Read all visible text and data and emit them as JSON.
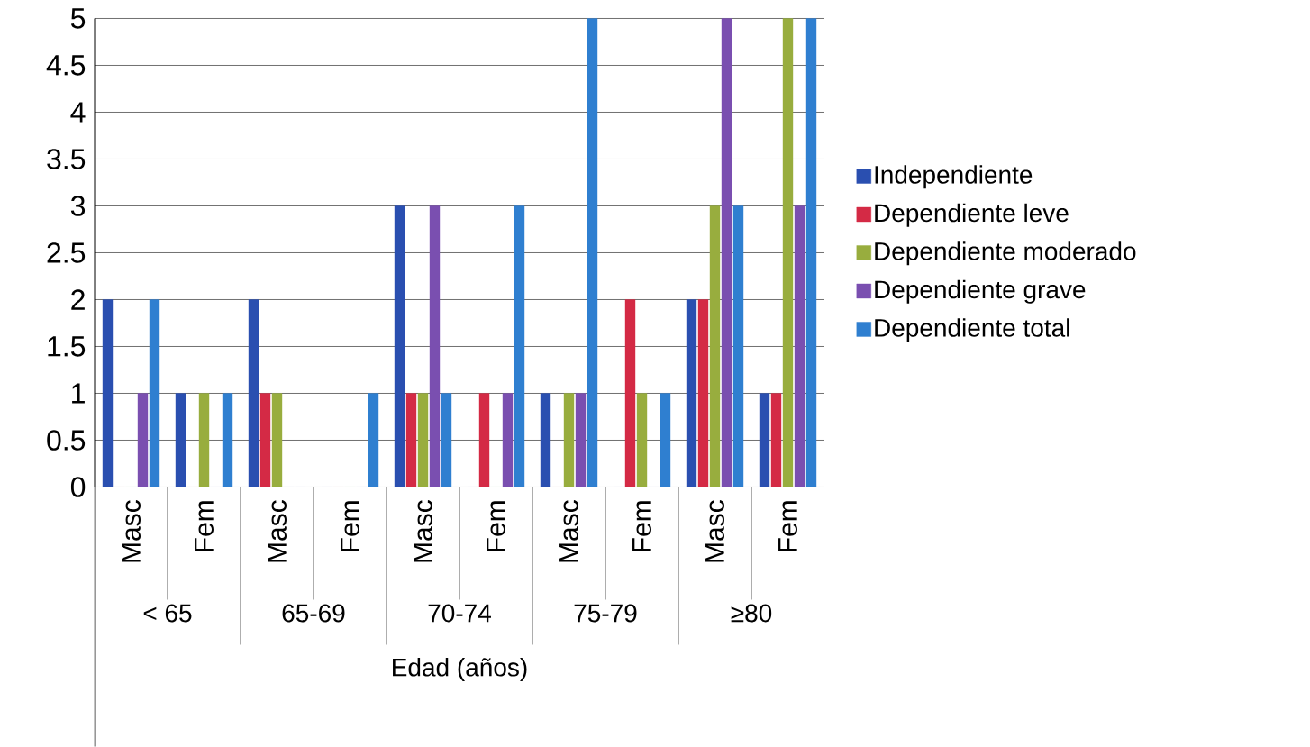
{
  "chart_data": {
    "type": "bar",
    "xlabel": "Edad (años)",
    "categories": [
      "Masc",
      "Fem",
      "Masc",
      "Fem",
      "Masc",
      "Fem",
      "Masc",
      "Fem",
      "Masc",
      "Fem"
    ],
    "annotations": [
      "< 65",
      "65-69",
      "70-74",
      "75-79",
      "≥80"
    ],
    "series": [
      {
        "name": "Independiente",
        "color": "#2a4fb0",
        "values": [
          2,
          1,
          2,
          0,
          3,
          0,
          1,
          0,
          2,
          1
        ]
      },
      {
        "name": "Dependiente leve",
        "color": "#d42a45",
        "values": [
          0,
          0,
          1,
          0,
          1,
          1,
          0,
          2,
          2,
          1
        ]
      },
      {
        "name": "Dependiente moderado",
        "color": "#98ad3e",
        "values": [
          0,
          1,
          1,
          0,
          1,
          0,
          1,
          1,
          3,
          5
        ]
      },
      {
        "name": "Dependiente grave",
        "color": "#7a4fb0",
        "values": [
          1,
          0,
          0,
          0,
          3,
          1,
          1,
          0,
          5,
          3
        ]
      },
      {
        "name": "Dependiente total",
        "color": "#2f7fd0",
        "values": [
          2,
          1,
          0,
          1,
          1,
          3,
          5,
          1,
          3,
          5
        ]
      }
    ],
    "ylim": [
      0,
      5
    ],
    "yticks": [
      0,
      0.5,
      1,
      1.5,
      2,
      2.5,
      3,
      3.5,
      4,
      4.5,
      5
    ],
    "grid": "y",
    "legend": "right"
  }
}
